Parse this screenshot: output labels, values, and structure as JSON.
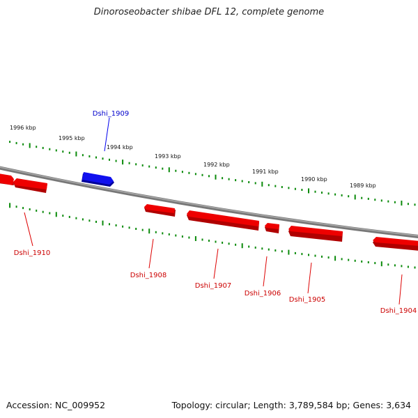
{
  "title": "Dinoroseobacter shibae DFL 12, complete genome",
  "footer": {
    "accession": "Accession: NC_009952",
    "topology": "Topology: circular; Length: 3,789,584 bp; Genes: 3,634"
  },
  "colors": {
    "forward_strand": "#0000ee",
    "reverse_strand": "#ee0000",
    "backbone": "#888888",
    "ticks": "#0a8a0a"
  },
  "ruler_labels": [
    "1996 kbp",
    "1995 kbp",
    "1994 kbp",
    "1993 kbp",
    "1992 kbp",
    "1991 kbp",
    "1990 kbp",
    "1989 kbp"
  ],
  "genes": [
    {
      "name": "Dshi_1910",
      "strand": "reverse"
    },
    {
      "name": "Dshi_1909",
      "strand": "forward"
    },
    {
      "name": "Dshi_1908",
      "strand": "reverse"
    },
    {
      "name": "Dshi_1907",
      "strand": "reverse"
    },
    {
      "name": "Dshi_1906",
      "strand": "reverse"
    },
    {
      "name": "Dshi_1905",
      "strand": "reverse"
    },
    {
      "name": "Dshi_1904",
      "strand": "reverse"
    }
  ]
}
